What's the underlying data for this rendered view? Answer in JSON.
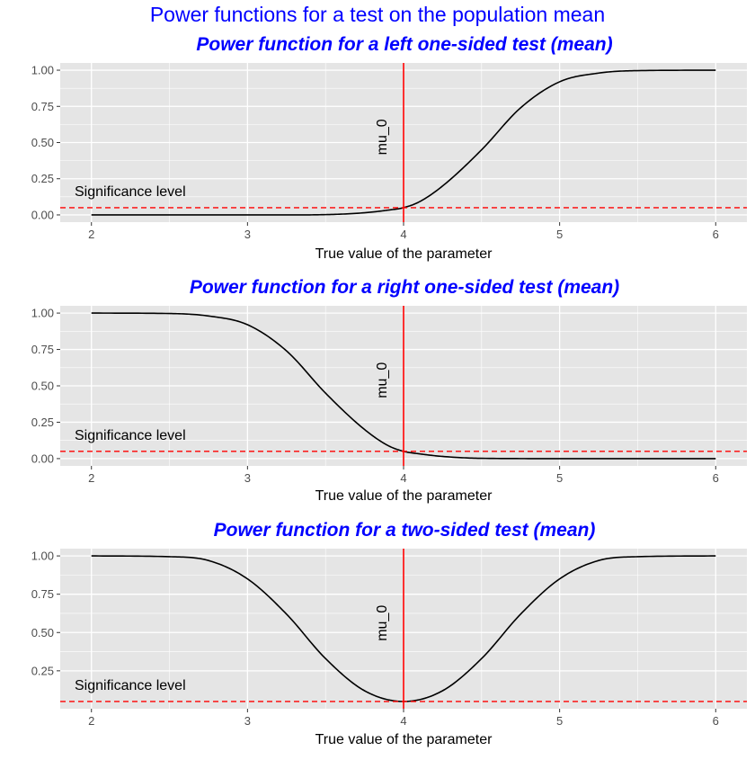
{
  "main_title": "Power functions for a test on the population mean",
  "colors": {
    "panel_bg": "#e5e5e5",
    "grid": "#ffffff",
    "curve": "#000000",
    "mu0_line": "#ff0000",
    "significance_line": "#ff0000",
    "title": "#0000ff",
    "tick_text": "#4d4d4d"
  },
  "chart_data": [
    {
      "type": "line",
      "title": "Power function for a left one-sided test (mean)",
      "xlabel": "True value of the parameter",
      "ylabel": "",
      "xlim": [
        2,
        6
      ],
      "ylim": [
        0,
        1
      ],
      "x_ticks": [
        2,
        3,
        4,
        5,
        6
      ],
      "x_tick_labels": [
        "2",
        "3",
        "4",
        "5",
        "6"
      ],
      "y_ticks": [
        0,
        0.25,
        0.5,
        0.75,
        1
      ],
      "y_tick_labels": [
        "0.00",
        "0.25",
        "0.50",
        "0.75",
        "1.00"
      ],
      "grid": true,
      "series": [
        {
          "x": [
            2.0,
            2.5,
            3.0,
            3.25,
            3.5,
            3.75,
            3.9,
            4.0,
            4.1,
            4.25,
            4.5,
            4.75,
            5.0,
            5.25,
            5.5,
            6.0
          ],
          "y": [
            0.0,
            0.0,
            0.0,
            0.0,
            0.002,
            0.015,
            0.033,
            0.05,
            0.09,
            0.2,
            0.45,
            0.74,
            0.92,
            0.98,
            0.997,
            1.0
          ]
        }
      ],
      "annotations": {
        "mu0_value": 4,
        "mu0_label": "mu_0",
        "significance_value": 0.05,
        "significance_label": "Significance level"
      }
    },
    {
      "type": "line",
      "title": "Power function for a right one-sided test (mean)",
      "xlabel": "True value of the parameter",
      "ylabel": "",
      "xlim": [
        2,
        6
      ],
      "ylim": [
        0,
        1
      ],
      "x_ticks": [
        2,
        3,
        4,
        5,
        6
      ],
      "x_tick_labels": [
        "2",
        "3",
        "4",
        "5",
        "6"
      ],
      "y_ticks": [
        0,
        0.25,
        0.5,
        0.75,
        1
      ],
      "y_tick_labels": [
        "0.00",
        "0.25",
        "0.50",
        "0.75",
        "1.00"
      ],
      "grid": true,
      "series": [
        {
          "x": [
            2.0,
            2.5,
            2.75,
            3.0,
            3.25,
            3.5,
            3.75,
            3.9,
            4.0,
            4.1,
            4.25,
            4.5,
            5.0,
            5.5,
            6.0
          ],
          "y": [
            1.0,
            0.997,
            0.98,
            0.92,
            0.74,
            0.45,
            0.2,
            0.09,
            0.05,
            0.033,
            0.015,
            0.002,
            0.0,
            0.0,
            0.0
          ]
        }
      ],
      "annotations": {
        "mu0_value": 4,
        "mu0_label": "mu_0",
        "significance_value": 0.05,
        "significance_label": "Significance level"
      }
    },
    {
      "type": "line",
      "title": "Power function for a two-sided test (mean)",
      "xlabel": "True value of the parameter",
      "ylabel": "",
      "xlim": [
        2,
        6
      ],
      "ylim": [
        0.05,
        1
      ],
      "x_ticks": [
        2,
        3,
        4,
        5,
        6
      ],
      "x_tick_labels": [
        "2",
        "3",
        "4",
        "5",
        "6"
      ],
      "y_ticks": [
        0.25,
        0.5,
        0.75,
        1
      ],
      "y_tick_labels": [
        "0.25",
        "0.50",
        "0.75",
        "1.00"
      ],
      "grid": true,
      "series": [
        {
          "x": [
            2.0,
            2.5,
            2.75,
            3.0,
            3.25,
            3.5,
            3.75,
            4.0,
            4.25,
            4.5,
            4.75,
            5.0,
            5.25,
            5.5,
            6.0
          ],
          "y": [
            1.0,
            0.995,
            0.97,
            0.85,
            0.62,
            0.33,
            0.12,
            0.05,
            0.12,
            0.33,
            0.62,
            0.85,
            0.97,
            0.995,
            1.0
          ]
        }
      ],
      "annotations": {
        "mu0_value": 4,
        "mu0_label": "mu_0",
        "significance_value": 0.05,
        "significance_label": "Significance level"
      }
    }
  ]
}
